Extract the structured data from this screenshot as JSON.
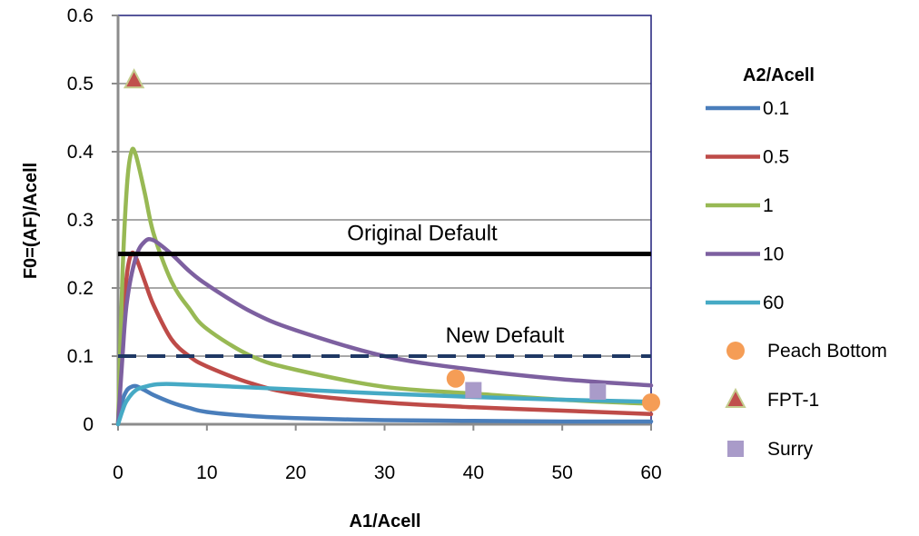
{
  "chart_data": {
    "type": "line",
    "xlabel": "A1/Acell",
    "ylabel": "F0=(AF)/Acell",
    "xlim": [
      0,
      60
    ],
    "ylim": [
      0,
      0.6
    ],
    "x_ticks": [
      "0",
      "10",
      "20",
      "30",
      "40",
      "50",
      "60"
    ],
    "y_ticks": [
      "0",
      "0.1",
      "0.2",
      "0.3",
      "0.4",
      "0.5",
      "0.6"
    ],
    "grid": "horizontal",
    "legend_title": "A2/Acell",
    "legend_position": "right",
    "series": [
      {
        "name": "0.1",
        "color": "#4a7ebb",
        "x": [
          0,
          0.5,
          1,
          1.5,
          2,
          3,
          4,
          6,
          8,
          10,
          15,
          20,
          30,
          40,
          50,
          60
        ],
        "values": [
          0,
          0.035,
          0.05,
          0.055,
          0.056,
          0.05,
          0.043,
          0.032,
          0.024,
          0.018,
          0.012,
          0.009,
          0.006,
          0.005,
          0.004,
          0.004
        ]
      },
      {
        "name": "0.5",
        "color": "#be4b48",
        "x": [
          0,
          0.5,
          1,
          1.5,
          2,
          3,
          4,
          6,
          8,
          10,
          15,
          20,
          30,
          40,
          50,
          60
        ],
        "values": [
          0,
          0.14,
          0.22,
          0.25,
          0.245,
          0.21,
          0.175,
          0.125,
          0.1,
          0.085,
          0.06,
          0.045,
          0.032,
          0.025,
          0.02,
          0.015
        ]
      },
      {
        "name": "1",
        "color": "#98b954",
        "x": [
          0,
          0.5,
          1,
          1.5,
          2,
          3,
          4,
          6,
          8,
          10,
          15,
          20,
          30,
          40,
          50,
          60
        ],
        "values": [
          0,
          0.22,
          0.35,
          0.4,
          0.395,
          0.34,
          0.28,
          0.21,
          0.17,
          0.14,
          0.1,
          0.08,
          0.055,
          0.045,
          0.036,
          0.03
        ]
      },
      {
        "name": "10",
        "color": "#7d60a0",
        "x": [
          0,
          0.5,
          1,
          2,
          3,
          4,
          6,
          8,
          10,
          15,
          20,
          30,
          40,
          50,
          60
        ],
        "values": [
          0,
          0.1,
          0.18,
          0.245,
          0.268,
          0.27,
          0.25,
          0.225,
          0.205,
          0.165,
          0.138,
          0.1,
          0.08,
          0.066,
          0.057
        ]
      },
      {
        "name": "60",
        "color": "#46aac5",
        "x": [
          0,
          0.5,
          1,
          2,
          3,
          4,
          5,
          6,
          8,
          10,
          15,
          20,
          30,
          40,
          50,
          60
        ],
        "values": [
          0,
          0.02,
          0.035,
          0.05,
          0.055,
          0.058,
          0.059,
          0.059,
          0.058,
          0.057,
          0.054,
          0.051,
          0.045,
          0.04,
          0.036,
          0.033
        ]
      }
    ],
    "reference_lines": [
      {
        "label": "Original Default",
        "y": 0.25,
        "color": "#000000",
        "style": "solid"
      },
      {
        "label": "New Default",
        "y": 0.1,
        "color": "#1f3864",
        "style": "dashed"
      }
    ],
    "scatter": [
      {
        "name": "Peach Bottom",
        "color": "#f59d56",
        "marker": "circle",
        "points": [
          [
            38,
            0.067
          ],
          [
            60,
            0.032
          ]
        ]
      },
      {
        "name": "FPT-1",
        "color": "#c0504d",
        "marker": "triangle",
        "points": [
          [
            1.8,
            0.505
          ]
        ]
      },
      {
        "name": "Surry",
        "color": "#a99bc9",
        "marker": "square",
        "points": [
          [
            40,
            0.05
          ],
          [
            54,
            0.048
          ]
        ]
      }
    ]
  }
}
